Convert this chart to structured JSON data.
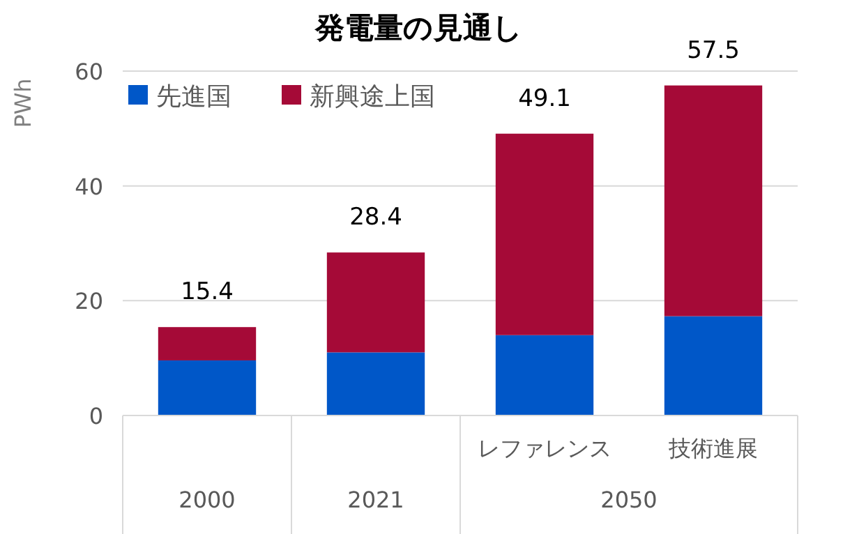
{
  "chart_data": {
    "type": "bar",
    "title": "発電量の見通し",
    "ylabel": "PWh",
    "stacked": true,
    "categories": [
      "2000",
      "2021",
      "レファレンス",
      "技術進展"
    ],
    "series": [
      {
        "name": "先進国",
        "color": "#0057c8",
        "values": [
          9.6,
          11.0,
          14.0,
          17.3
        ]
      },
      {
        "name": "新興途上国",
        "color": "#a50a37",
        "values": [
          5.8,
          17.4,
          35.1,
          40.2
        ]
      }
    ],
    "totals": [
      "15.4",
      "28.4",
      "49.1",
      "57.5"
    ],
    "annotations": [
      "2050"
    ],
    "ylim": [
      0,
      60
    ],
    "yticks": [
      0,
      20,
      40,
      60
    ],
    "grid": "y",
    "legend": "top left"
  }
}
